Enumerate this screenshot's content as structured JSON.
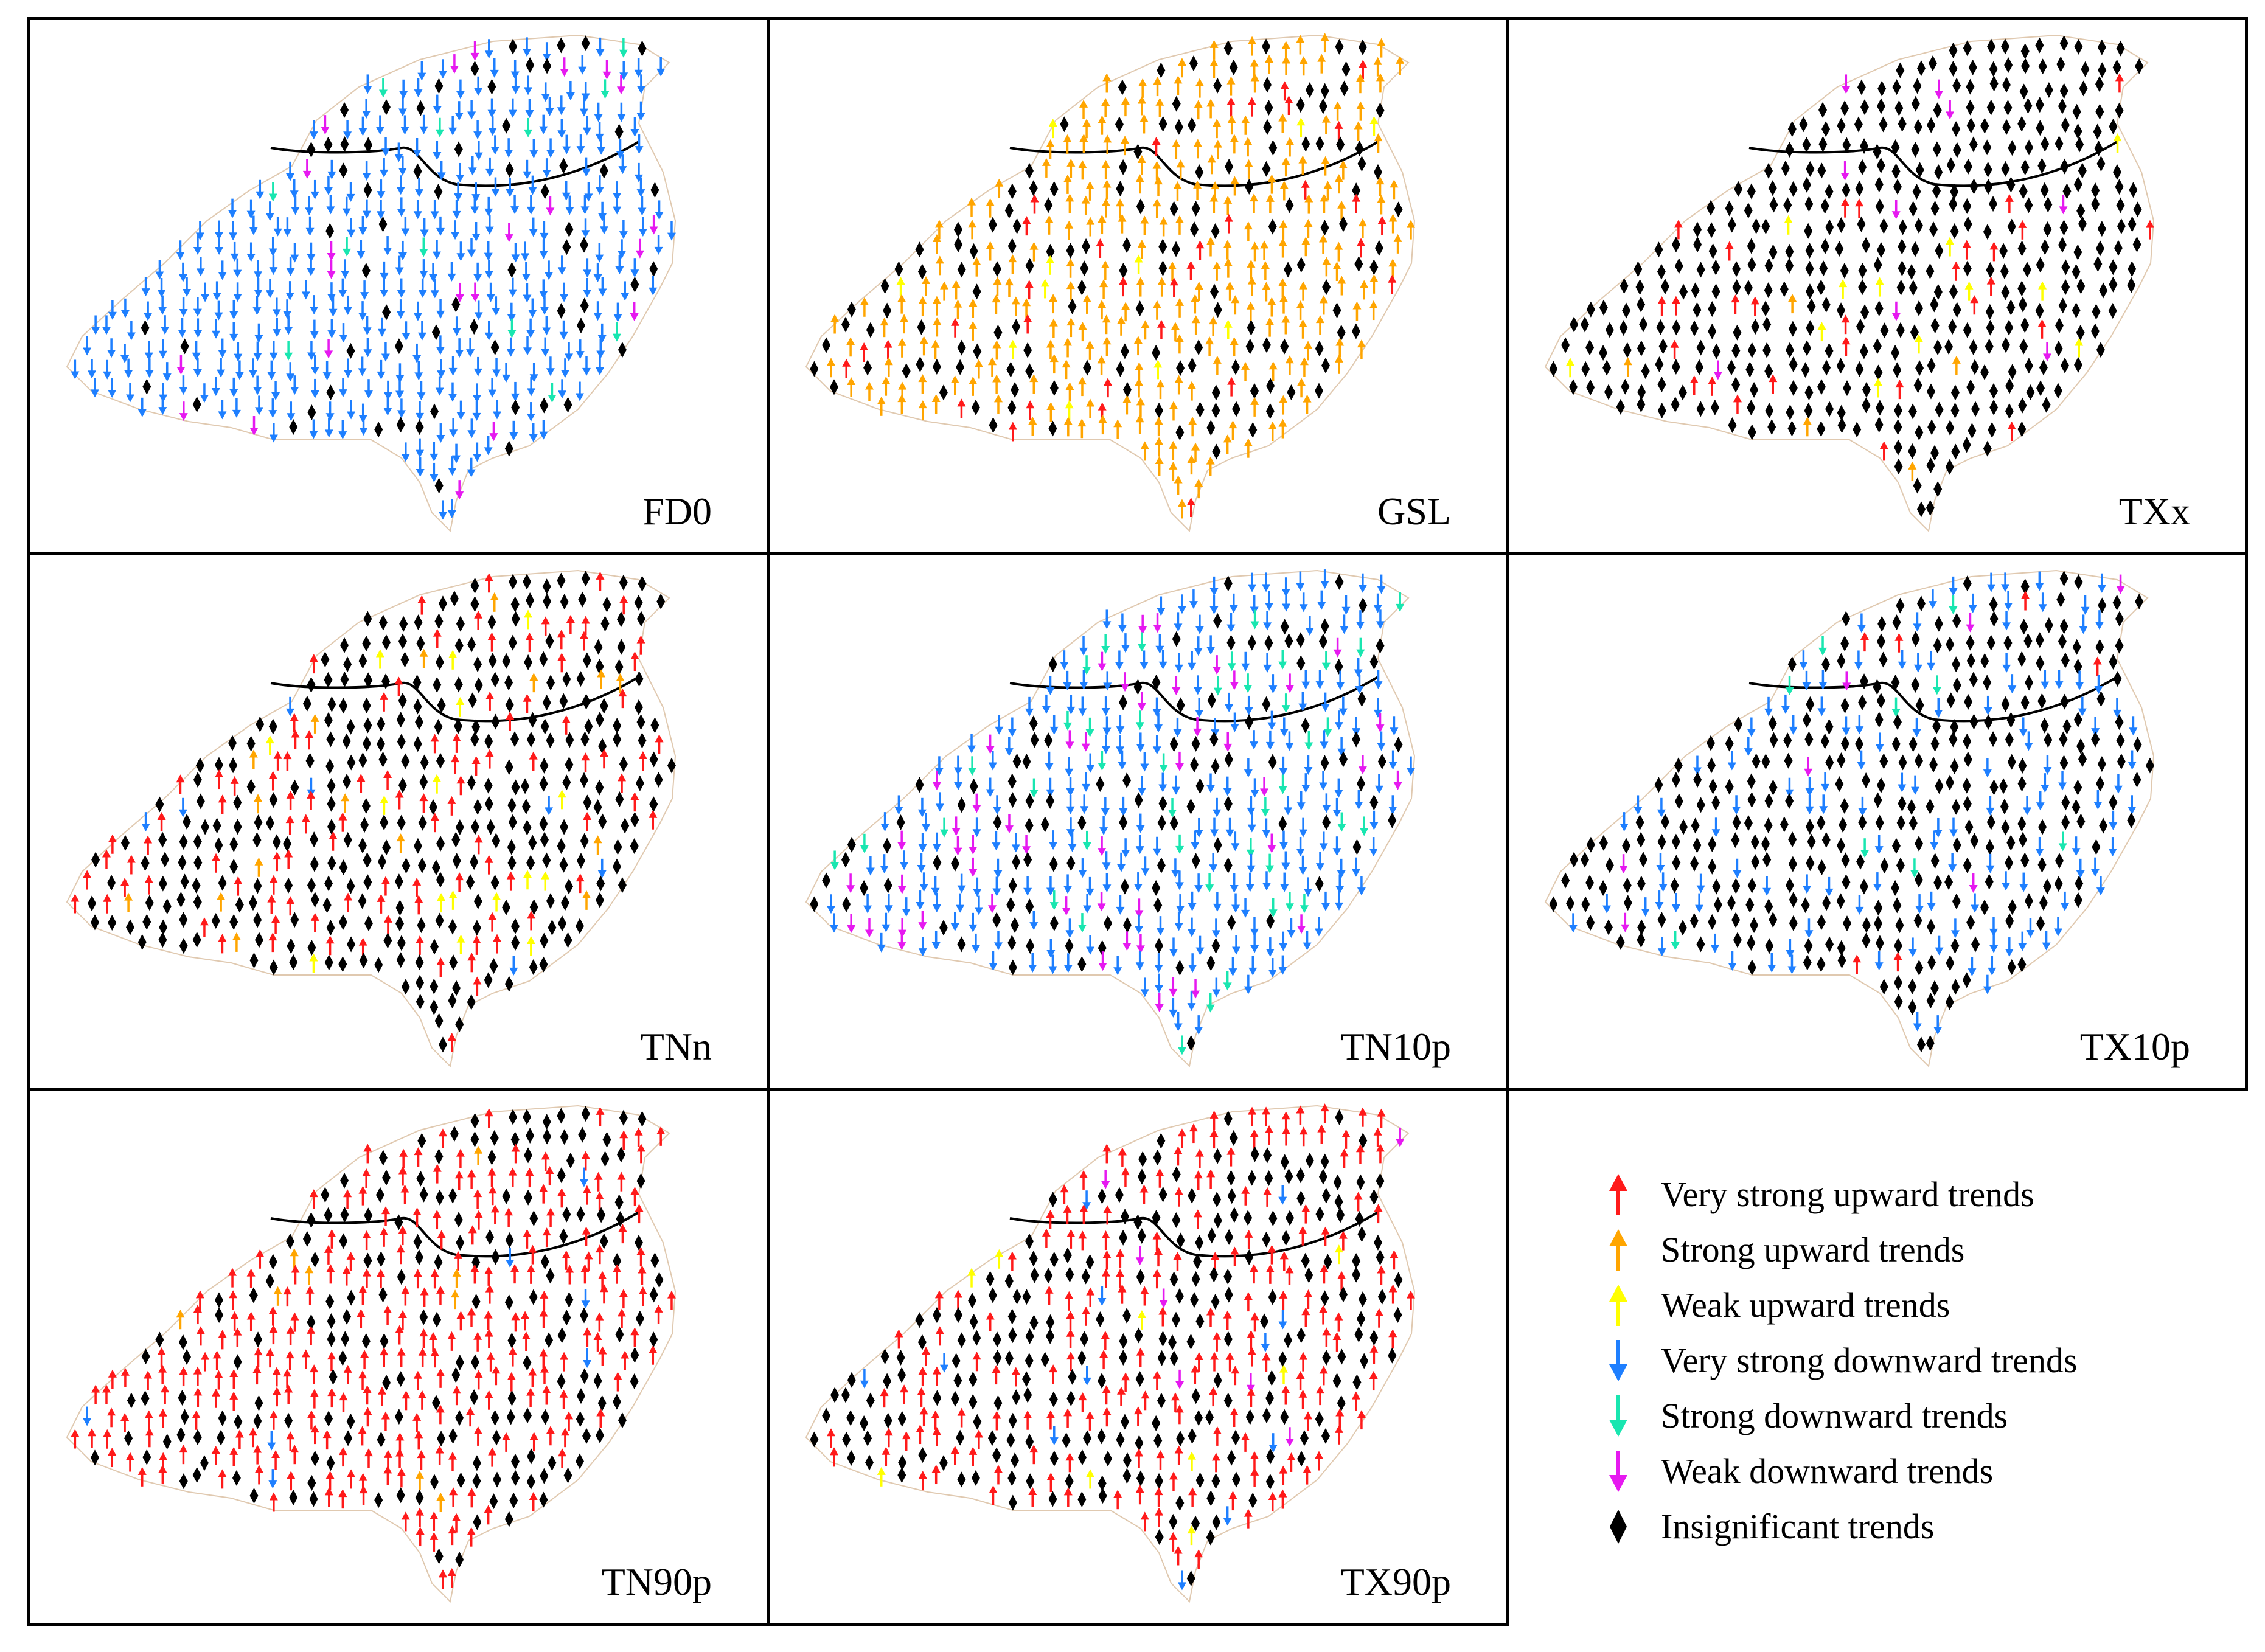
{
  "colors": {
    "very_strong_up": "#ff1a1a",
    "strong_up": "#ffa500",
    "weak_up": "#ffff00",
    "very_strong_down": "#1e7fff",
    "strong_down": "#19e6b0",
    "weak_down": "#e619f0",
    "insignificant": "#000000",
    "border": "#e0c9b0",
    "divider": "#000000"
  },
  "panels": [
    {
      "label": "FD0",
      "mix": {
        "insignificant": 0.12,
        "very_strong_down": 0.8,
        "strong_down": 0.03,
        "weak_down": 0.05
      }
    },
    {
      "label": "GSL",
      "mix": {
        "insignificant": 0.35,
        "strong_up": 0.55,
        "very_strong_up": 0.08,
        "weak_up": 0.02
      }
    },
    {
      "label": "TXx",
      "mix": {
        "insignificant": 0.9,
        "very_strong_up": 0.06,
        "strong_up": 0.01,
        "weak_up": 0.02,
        "weak_down": 0.01
      }
    },
    {
      "label": "TNn",
      "mix": {
        "insignificant": 0.68,
        "very_strong_up": 0.25,
        "weak_up": 0.04,
        "strong_up": 0.02,
        "very_strong_down": 0.01
      }
    },
    {
      "label": "TN10p",
      "mix": {
        "insignificant": 0.28,
        "very_strong_down": 0.55,
        "strong_down": 0.08,
        "weak_down": 0.09
      }
    },
    {
      "label": "TX10p",
      "mix": {
        "insignificant": 0.68,
        "very_strong_down": 0.26,
        "strong_down": 0.03,
        "weak_down": 0.02,
        "very_strong_up": 0.01
      }
    },
    {
      "label": "TN90p",
      "mix": {
        "insignificant": 0.4,
        "very_strong_up": 0.55,
        "strong_up": 0.02,
        "very_strong_down": 0.03
      }
    },
    {
      "label": "TX90p",
      "mix": {
        "insignificant": 0.52,
        "very_strong_up": 0.42,
        "weak_up": 0.02,
        "very_strong_down": 0.03,
        "weak_down": 0.01
      }
    }
  ],
  "legend": [
    {
      "key": "very_strong_up",
      "label": "Very strong upward trends"
    },
    {
      "key": "strong_up",
      "label": "Strong upward trends"
    },
    {
      "key": "weak_up",
      "label": "Weak upward trends"
    },
    {
      "key": "very_strong_down",
      "label": "Very strong downward trends"
    },
    {
      "key": "strong_down",
      "label": "Strong downward trends"
    },
    {
      "key": "weak_down",
      "label": "Weak downward trends"
    },
    {
      "key": "insignificant",
      "label": "Insignificant trends"
    }
  ]
}
